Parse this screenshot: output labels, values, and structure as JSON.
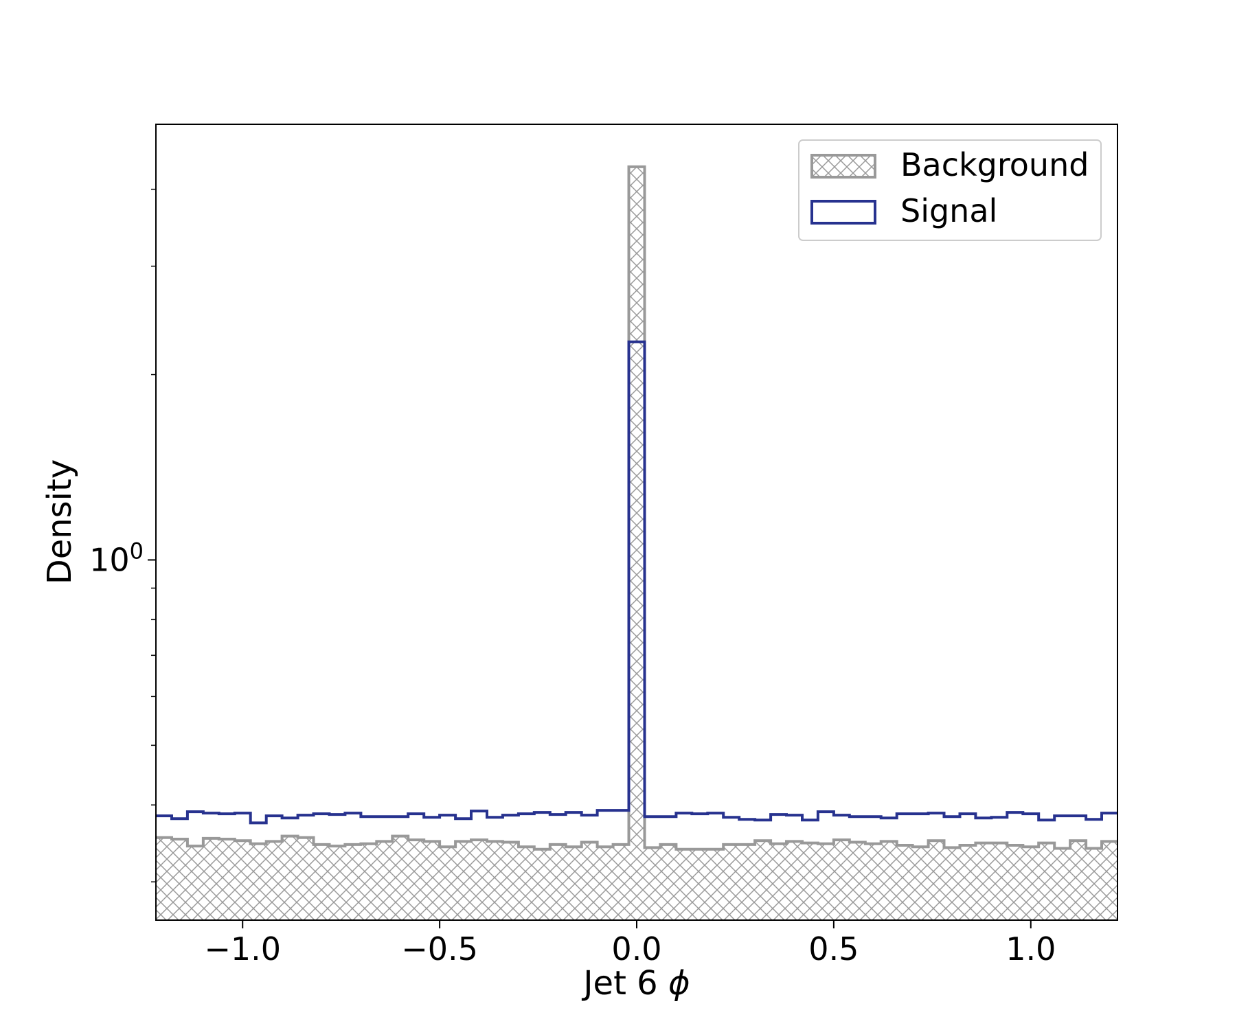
{
  "chart_data": {
    "type": "histogram",
    "xlabel": "Jet 6 ",
    "xlabel_symbol": "ϕ",
    "ylabel": "Density",
    "yscale": "log",
    "xlim": [
      -1.22,
      1.22
    ],
    "ylim": [
      0.26,
      5.1
    ],
    "xticks": [
      -1.0,
      -0.5,
      0.0,
      0.5,
      1.0
    ],
    "xtick_labels": [
      "−1.0",
      "−0.5",
      "0.0",
      "0.5",
      "1.0"
    ],
    "yticks": [
      {
        "value": 1.0,
        "base": "10",
        "exp": "0"
      }
    ],
    "y_minor_ticks": [
      0.3,
      0.4,
      0.5,
      0.6,
      0.7,
      0.8,
      0.9,
      2,
      3,
      4
    ],
    "grid": false,
    "legend": {
      "location": "upper right"
    },
    "bin_edges_range": [
      -1.22,
      1.22
    ],
    "n_bins": 61,
    "series": [
      {
        "name": "Background",
        "style": "step-filled-hatched",
        "color": "#999999",
        "hatch": "x",
        "values": [
          0.354,
          0.352,
          0.343,
          0.353,
          0.352,
          0.35,
          0.346,
          0.349,
          0.356,
          0.354,
          0.345,
          0.343,
          0.345,
          0.346,
          0.349,
          0.356,
          0.351,
          0.349,
          0.342,
          0.349,
          0.351,
          0.349,
          0.348,
          0.342,
          0.339,
          0.345,
          0.342,
          0.348,
          0.342,
          0.345,
          0.344,
          0.341,
          0.345,
          0.339,
          0.339,
          0.339,
          0.345,
          0.345,
          0.35,
          0.346,
          0.349,
          0.347,
          0.346,
          0.351,
          0.348,
          0.346,
          0.349,
          0.344,
          0.342,
          0.35,
          0.341,
          0.344,
          0.347,
          0.347,
          0.344,
          0.342,
          0.347,
          0.34,
          0.35,
          0.34,
          0.349
        ]
      },
      {
        "name": "Signal",
        "style": "step",
        "color": "#27328f",
        "values": [
          0.384,
          0.38,
          0.39,
          0.388,
          0.387,
          0.388,
          0.374,
          0.384,
          0.381,
          0.385,
          0.387,
          0.386,
          0.388,
          0.383,
          0.383,
          0.383,
          0.387,
          0.382,
          0.385,
          0.38,
          0.391,
          0.382,
          0.385,
          0.387,
          0.389,
          0.386,
          0.389,
          0.385,
          0.392,
          0.392,
          0.395,
          0.383,
          0.383,
          0.388,
          0.387,
          0.388,
          0.382,
          0.379,
          0.378,
          0.386,
          0.385,
          0.378,
          0.39,
          0.385,
          0.383,
          0.383,
          0.381,
          0.387,
          0.387,
          0.388,
          0.383,
          0.387,
          0.381,
          0.382,
          0.389,
          0.387,
          0.378,
          0.384,
          0.384,
          0.379,
          0.388
        ]
      }
    ],
    "spike": {
      "x_range": [
        -0.02,
        0.0
      ],
      "Background": 4.35,
      "Signal": 2.26
    }
  }
}
